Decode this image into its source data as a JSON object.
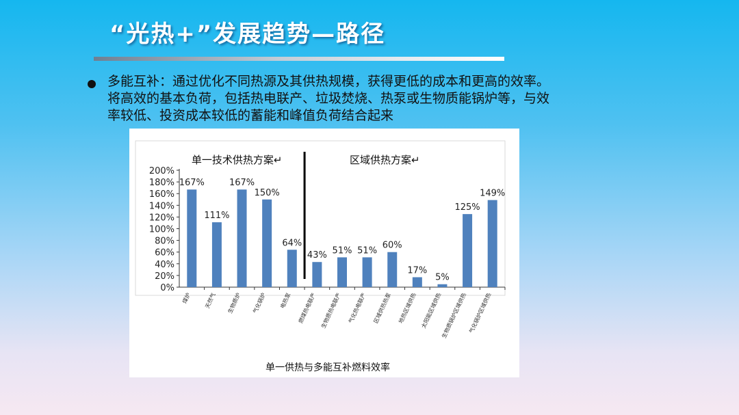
{
  "slide": {
    "title": "“光热+”发展趋势—路径",
    "bullet_text": "多能互补：通过优化不同热源及其供热规模，获得更低的成本和更高的效率。将高效的基本负荷，包括热电联产、垃圾焚烧、热泵或生物质能锅炉等，与效率较低、投资成本较低的蓄能和峰值负荷结合起来"
  },
  "colors": {
    "bar": "#4f81bd",
    "divider": "#000000",
    "title_text": "#ffffff"
  },
  "chart_data": {
    "type": "bar",
    "title": "单一供热与多能互补燃料效率",
    "categories": [
      "煤炉",
      "天然气",
      "生物质炉",
      "气化锅炉",
      "电热泵",
      "燃煤热电联产",
      "生物质热电联产",
      "气化热电联产",
      "区域供热热泵",
      "地热区域供热",
      "太阳能区域供热",
      "生物质锅炉区域供热",
      "气化锅炉区域供热"
    ],
    "values": [
      167,
      111,
      167,
      150,
      64,
      43,
      51,
      51,
      60,
      17,
      5,
      125,
      149
    ],
    "data_labels": [
      "167%",
      "111%",
      "167%",
      "150%",
      "64%",
      "43%",
      "51%",
      "51%",
      "60%",
      "17%",
      "5%",
      "125%",
      "149%"
    ],
    "y_ticks": [
      0,
      20,
      40,
      60,
      80,
      100,
      120,
      140,
      160,
      180,
      200
    ],
    "y_tick_labels": [
      "0%",
      "20%",
      "40%",
      "60%",
      "80%",
      "100%",
      "120%",
      "140%",
      "160%",
      "180%",
      "200%"
    ],
    "ylim": [
      0,
      200
    ],
    "grid": false,
    "groups": [
      {
        "label": "单一技术供热方案↵",
        "first_index": 0,
        "last_index": 4
      },
      {
        "label": "区域供热方案↵",
        "first_index": 5,
        "last_index": 12
      }
    ],
    "divider_after_index": 4
  }
}
